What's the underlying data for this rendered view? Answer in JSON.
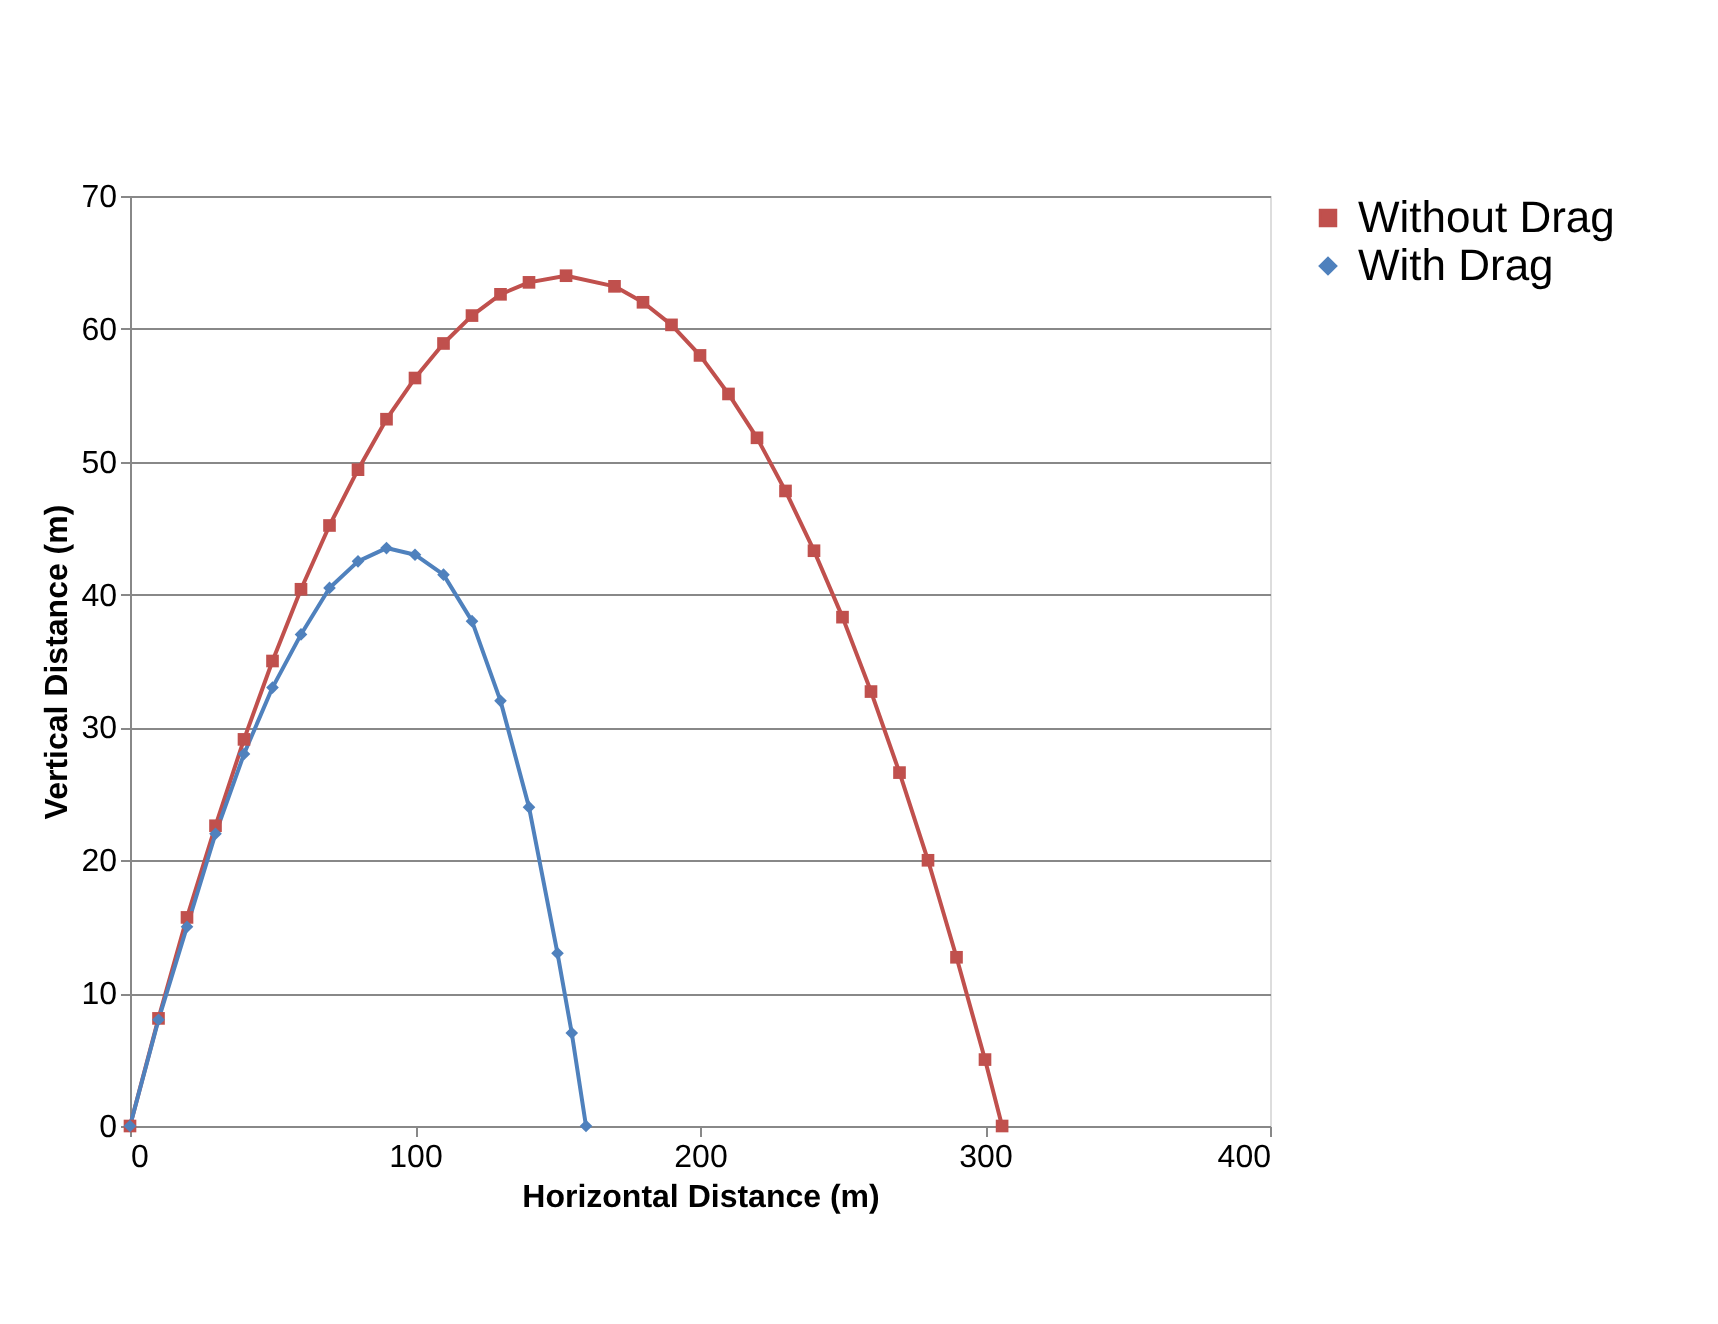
{
  "chart_data": {
    "type": "line",
    "xlabel": "Horizontal Distance (m)",
    "ylabel": "Vertical Distance (m)",
    "xlim": [
      0,
      400
    ],
    "ylim": [
      0,
      70
    ],
    "xticks": [
      0,
      100,
      200,
      300,
      400
    ],
    "yticks": [
      0,
      10,
      20,
      30,
      40,
      50,
      60,
      70
    ],
    "grid": "y",
    "legend": "right",
    "line_style": "solid",
    "series": [
      {
        "name": "Without Drag",
        "color": "#c0504d",
        "marker": "square",
        "x": [
          0,
          10,
          20,
          30,
          40,
          50,
          60,
          70,
          80,
          90,
          100,
          110,
          120,
          130,
          140,
          153,
          170,
          180,
          190,
          200,
          210,
          220,
          230,
          240,
          250,
          260,
          270,
          280,
          290,
          300,
          306
        ],
        "values": [
          0,
          8.1,
          15.7,
          22.6,
          29.1,
          35.0,
          40.4,
          45.2,
          49.4,
          53.2,
          56.3,
          58.9,
          61.0,
          62.6,
          63.5,
          64,
          63.2,
          62.0,
          60.3,
          58.0,
          55.1,
          51.8,
          47.8,
          43.3,
          38.3,
          32.7,
          26.6,
          20.0,
          12.7,
          5.0,
          0
        ]
      },
      {
        "name": "With Drag",
        "color": "#4f81bd",
        "marker": "diamond",
        "x": [
          0,
          10,
          20,
          30,
          40,
          50,
          60,
          70,
          80,
          90,
          100,
          110,
          120,
          130,
          140,
          150,
          155,
          160
        ],
        "values": [
          0,
          8,
          15,
          22,
          28,
          33,
          37,
          40.5,
          42.5,
          43.5,
          43,
          41.5,
          38,
          32,
          24,
          13,
          7,
          0
        ]
      }
    ]
  }
}
